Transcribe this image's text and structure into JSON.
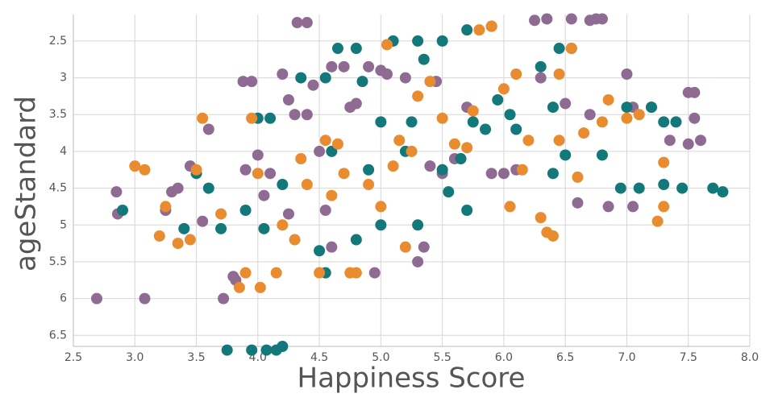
{
  "chart_data": {
    "type": "scatter",
    "x_label": "Happiness Score",
    "y_label": "ageStandard",
    "xlim": [
      2.5,
      8.0
    ],
    "ylim": [
      2.14,
      6.65
    ],
    "y_reversed": true,
    "grid": true,
    "xticks": [
      2.5,
      {
        "value": 3,
        "label": "3.0"
      },
      3.5,
      {
        "value": 4,
        "label": "4.0"
      },
      4.5,
      {
        "value": 5,
        "label": "5.0"
      },
      5.5,
      {
        "value": 6,
        "label": "6.0"
      },
      6.5,
      {
        "value": 7,
        "label": "7.0"
      },
      7.5,
      {
        "value": 8,
        "label": "8.0"
      }
    ],
    "yticks": [
      2.5,
      3,
      3.5,
      4,
      4.5,
      5,
      5.5,
      6,
      6.5
    ],
    "series": [
      {
        "color": "#8f6b94",
        "x": [
          2.69,
          3.08,
          3.72,
          2.85,
          2.86,
          3.3,
          3.35,
          3.45,
          3.6,
          3.88,
          3.95,
          3.8,
          3.82,
          3.9,
          4.0,
          4.05,
          4.1,
          4.2,
          4.25,
          4.3,
          4.32,
          4.4,
          4.4,
          4.45,
          4.5,
          4.55,
          4.6,
          4.7,
          4.75,
          4.8,
          4.9,
          5.0,
          5.05,
          5.2,
          5.3,
          5.35,
          5.4,
          5.45,
          5.5,
          5.6,
          5.7,
          5.9,
          6.0,
          6.1,
          6.3,
          6.5,
          6.7,
          6.75,
          6.8,
          6.7,
          6.55,
          6.35,
          6.25,
          7.0,
          7.05,
          7.2,
          7.5,
          7.55,
          7.55,
          7.5,
          7.35,
          7.6,
          7.05,
          6.85,
          6.6,
          4.95,
          4.6,
          4.25,
          3.25,
          3.55
        ],
        "values": [
          6.0,
          6.0,
          6.0,
          4.55,
          4.85,
          4.55,
          4.5,
          4.2,
          3.7,
          3.05,
          3.05,
          5.7,
          5.75,
          4.25,
          4.05,
          4.6,
          4.3,
          2.95,
          3.3,
          3.5,
          2.25,
          2.25,
          3.5,
          3.1,
          4.0,
          4.8,
          2.85,
          2.85,
          3.4,
          3.35,
          2.85,
          2.9,
          2.95,
          3.0,
          5.5,
          5.3,
          4.2,
          3.05,
          4.3,
          4.1,
          3.4,
          4.3,
          4.3,
          4.25,
          3.0,
          3.35,
          3.5,
          2.2,
          2.2,
          2.22,
          2.2,
          2.2,
          2.22,
          2.95,
          3.4,
          3.4,
          3.2,
          3.2,
          3.55,
          3.9,
          3.85,
          3.85,
          4.75,
          4.75,
          4.7,
          5.65,
          5.3,
          4.85,
          4.8,
          4.95
        ]
      },
      {
        "color": "#13787a",
        "x": [
          2.9,
          3.75,
          3.95,
          4.07,
          4.15,
          4.2,
          3.4,
          3.5,
          3.6,
          3.7,
          3.9,
          4.0,
          4.05,
          4.1,
          4.2,
          4.35,
          4.55,
          4.5,
          4.55,
          4.6,
          4.65,
          4.8,
          4.85,
          5.0,
          5.1,
          5.3,
          5.35,
          5.25,
          5.2,
          5.5,
          5.7,
          5.9,
          6.05,
          5.85,
          5.75,
          5.95,
          6.1,
          6.3,
          6.45,
          6.55,
          6.4,
          6.5,
          6.4,
          6.8,
          6.95,
          7.0,
          7.2,
          7.3,
          7.4,
          7.3,
          7.45,
          7.7,
          7.78,
          7.1,
          5.55,
          5.7,
          5.0,
          4.8,
          5.3,
          5.5,
          5.65,
          4.9
        ],
        "values": [
          4.8,
          6.7,
          6.7,
          6.7,
          6.7,
          6.65,
          5.05,
          4.3,
          4.5,
          5.05,
          4.8,
          3.55,
          5.05,
          3.55,
          4.45,
          3.0,
          3.0,
          5.35,
          5.65,
          4.0,
          2.6,
          2.6,
          3.05,
          3.6,
          2.5,
          2.5,
          2.75,
          3.6,
          4.0,
          2.5,
          2.35,
          2.3,
          3.5,
          3.7,
          3.6,
          3.3,
          3.7,
          2.85,
          2.6,
          2.6,
          3.4,
          4.05,
          4.3,
          4.05,
          4.5,
          3.4,
          3.4,
          3.6,
          3.6,
          4.45,
          4.5,
          4.5,
          4.55,
          4.5,
          4.55,
          4.8,
          5.0,
          5.2,
          5.0,
          4.25,
          4.1,
          4.25
        ]
      },
      {
        "color": "#e98b2f",
        "x": [
          3.0,
          3.08,
          3.2,
          3.25,
          3.35,
          3.45,
          3.5,
          3.55,
          3.7,
          3.85,
          3.9,
          3.95,
          4.0,
          4.02,
          4.15,
          4.2,
          4.3,
          4.35,
          4.4,
          4.5,
          4.55,
          4.6,
          4.65,
          4.7,
          4.75,
          4.8,
          4.9,
          5.0,
          5.05,
          5.1,
          5.2,
          5.25,
          5.3,
          5.4,
          5.5,
          5.6,
          5.7,
          5.8,
          5.9,
          6.0,
          6.05,
          6.1,
          6.15,
          6.2,
          6.3,
          6.35,
          6.4,
          6.45,
          6.45,
          6.55,
          6.6,
          6.65,
          6.8,
          6.85,
          7.0,
          7.1,
          7.3,
          7.3,
          7.25,
          5.75,
          5.15
        ],
        "values": [
          4.2,
          4.25,
          5.15,
          4.75,
          5.25,
          5.2,
          4.25,
          3.55,
          4.85,
          5.85,
          5.65,
          3.55,
          4.3,
          5.85,
          5.65,
          5.0,
          5.2,
          4.1,
          4.45,
          5.65,
          3.85,
          4.6,
          3.9,
          4.3,
          5.65,
          5.65,
          4.45,
          4.75,
          2.55,
          4.2,
          5.3,
          4.0,
          3.25,
          3.05,
          3.55,
          3.9,
          3.95,
          2.35,
          2.3,
          3.15,
          4.75,
          2.95,
          4.25,
          3.85,
          4.9,
          5.1,
          5.15,
          3.85,
          2.95,
          2.6,
          4.35,
          3.75,
          3.6,
          3.3,
          3.55,
          3.5,
          4.15,
          4.75,
          4.95,
          3.45,
          3.85
        ]
      }
    ]
  }
}
